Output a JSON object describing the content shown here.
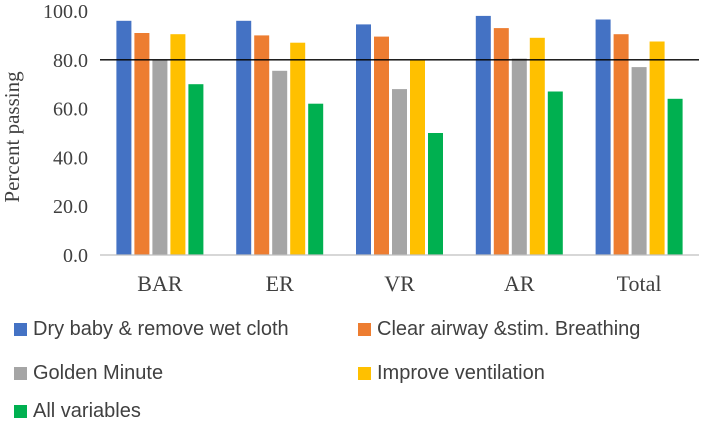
{
  "chart_data": {
    "type": "bar",
    "ylabel": "Percent passing",
    "xlabel": "",
    "ylim": [
      0,
      100
    ],
    "yticks": [
      "0.0",
      "20.0",
      "40.0",
      "60.0",
      "80.0",
      "100.0"
    ],
    "categories": [
      "BAR",
      "ER",
      "VR",
      "AR",
      "Total"
    ],
    "reference_line": 80,
    "series": [
      {
        "name": "Dry baby & remove wet cloth",
        "color": "#4472C4",
        "values": [
          96.0,
          96.0,
          94.5,
          98.0,
          96.5
        ]
      },
      {
        "name": "Clear airway &stim. Breathing",
        "color": "#ED7D31",
        "values": [
          91.0,
          90.0,
          89.5,
          93.0,
          90.5
        ]
      },
      {
        "name": "Golden Minute",
        "color": "#A5A5A5",
        "values": [
          80.0,
          75.5,
          68.0,
          80.5,
          77.0
        ]
      },
      {
        "name": "Improve ventilation",
        "color": "#FFC000",
        "values": [
          90.5,
          87.0,
          80.0,
          89.0,
          87.5
        ]
      },
      {
        "name": "All variables",
        "color": "#00B050",
        "values": [
          70.0,
          62.0,
          50.0,
          67.0,
          64.0
        ]
      }
    ],
    "grid": false,
    "legend_position": "bottom"
  }
}
